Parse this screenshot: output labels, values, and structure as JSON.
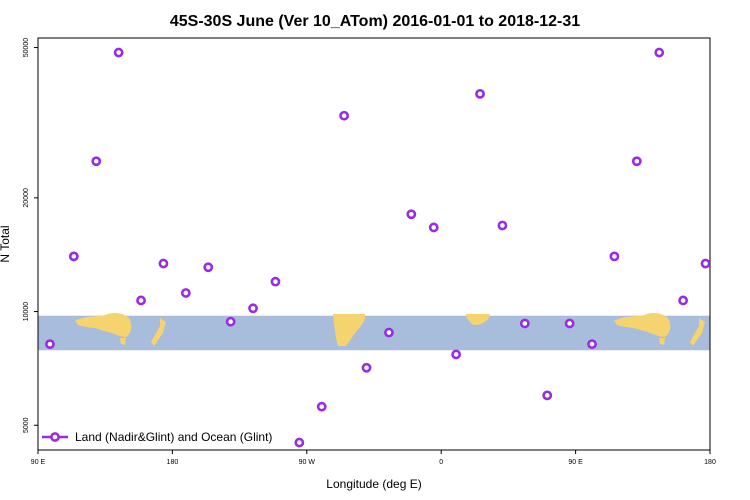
{
  "chart_data": {
    "type": "scatter",
    "title": "45S-30S June (Ver 10_ATom)   2016-01-01 to 2018-12-31",
    "xlabel": "Longitude (deg E)",
    "ylabel": "N Total",
    "x_scale": "linear",
    "y_scale": "log",
    "xlim": [
      90,
      540
    ],
    "ylim": [
      4300,
      53000
    ],
    "x_ticks": [
      {
        "value": 90,
        "label": "90 E"
      },
      {
        "value": 180,
        "label": "180"
      },
      {
        "value": 270,
        "label": "90 W"
      },
      {
        "value": 360,
        "label": "0"
      },
      {
        "value": 450,
        "label": "90 E"
      },
      {
        "value": 540,
        "label": "180"
      }
    ],
    "y_ticks": [
      {
        "value": 5000,
        "label": "5000"
      },
      {
        "value": 10000,
        "label": "10000"
      },
      {
        "value": 20000,
        "label": "20000"
      },
      {
        "value": 50000,
        "label": "50000"
      }
    ],
    "grid": false,
    "legend_position": "bottom-left",
    "map_band": {
      "ymin": 7900,
      "ymax": 9750
    },
    "series": [
      {
        "name": "Land (Nadir&Glint) and Ocean (Glint)",
        "color": "#9a2be2",
        "x": [
          98,
          114,
          129,
          144,
          159,
          174,
          189,
          204,
          219,
          234,
          249,
          265,
          280,
          295,
          310,
          325,
          340,
          355,
          370,
          386,
          401,
          416,
          431,
          446,
          461,
          476,
          491,
          506,
          522,
          537
        ],
        "y": [
          8200,
          14000,
          25000,
          48500,
          10700,
          13400,
          11200,
          13100,
          9400,
          10200,
          12000,
          4500,
          5600,
          33000,
          7100,
          8800,
          18100,
          16700,
          7700,
          37700,
          16900,
          9300,
          6000,
          9300,
          8200,
          14000,
          25000,
          48500,
          10700,
          13400
        ]
      }
    ]
  }
}
